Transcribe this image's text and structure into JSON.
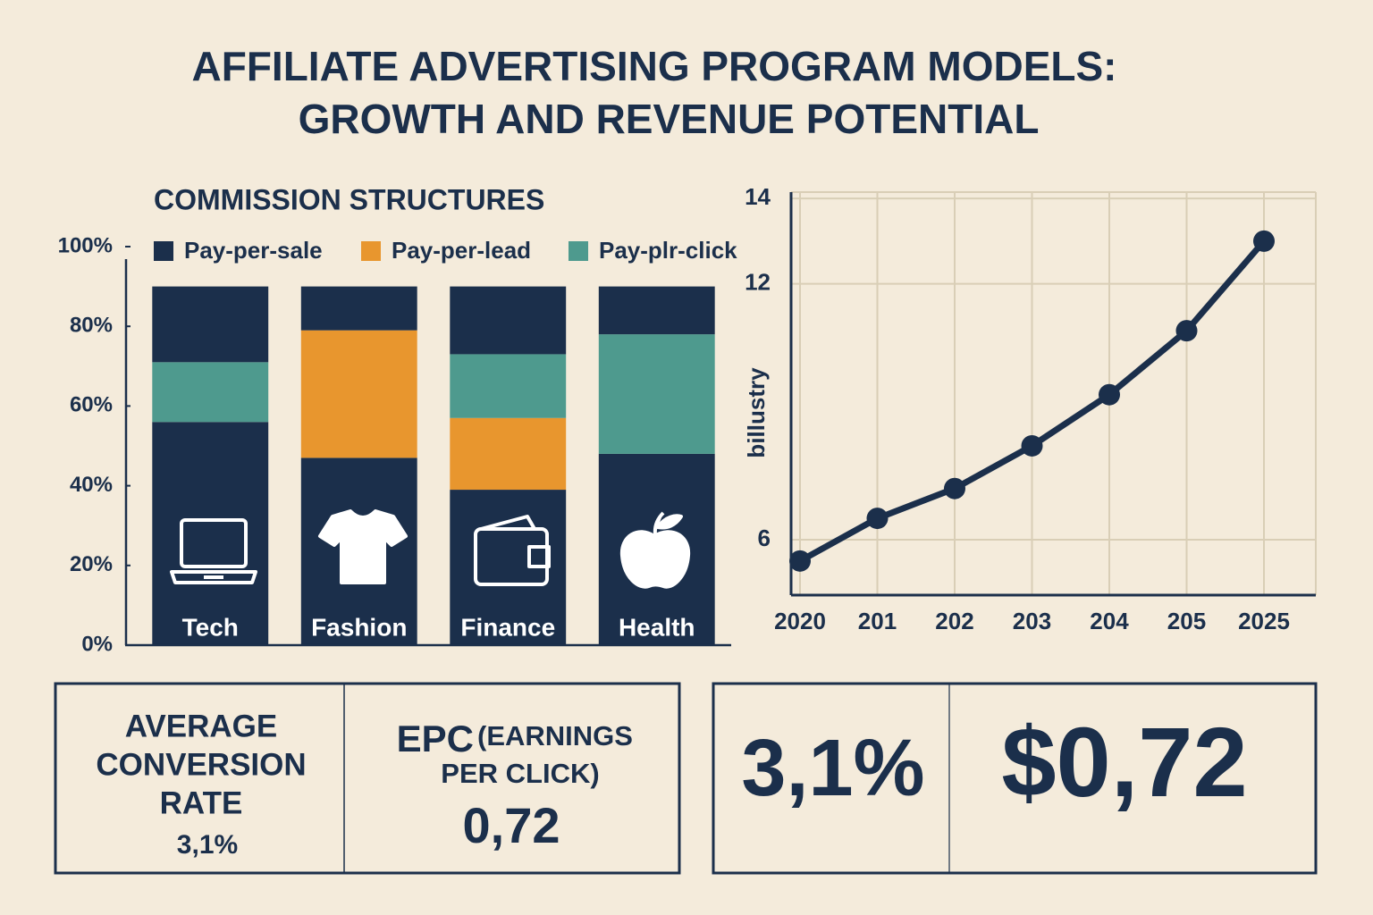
{
  "title_lines": [
    "AFFILIATE ADVERTISING PROGRAM MODELS:",
    "GROWTH AND REVENUE POTENTIAL"
  ],
  "chart_data": [
    {
      "type": "stacked_bar",
      "title": "COMMISSION STRUCTURES",
      "categories": [
        "Tech",
        "Fashion",
        "Finance",
        "Health"
      ],
      "series": [
        {
          "name": "Pay-per-sale",
          "color": "#1b2f4b",
          "values": [
            56,
            47,
            39,
            48
          ]
        },
        {
          "name": "Pay-per-lead",
          "color": "#e8962e",
          "values": [
            0,
            32,
            18,
            0
          ]
        },
        {
          "name": "Pay-plr-click",
          "color": "#4e9a8e",
          "values": [
            15,
            0,
            16,
            30
          ]
        },
        {
          "color": "#1b2f4b",
          "values": [
            19,
            11,
            17,
            12
          ]
        }
      ],
      "ylim": [
        0,
        100
      ],
      "yticks": [
        {
          "value": 0,
          "label": "0%"
        },
        {
          "value": 20,
          "label": "20%"
        },
        {
          "value": 40,
          "label": "40%"
        },
        {
          "value": 60,
          "label": "60%"
        },
        {
          "value": 80,
          "label": "80%"
        },
        {
          "value": 100,
          "label": "100%"
        }
      ]
    },
    {
      "type": "line",
      "y_label": "billustry",
      "categories": [
        "2020",
        "201",
        "202",
        "203",
        "204",
        "205",
        "2025"
      ],
      "series": [
        {
          "color": "#1b2f4b",
          "values": [
            5.5,
            6.5,
            7.2,
            8.2,
            9.4,
            10.9,
            13.0
          ]
        }
      ],
      "ylim": [
        4.7,
        14.15
      ],
      "yticks": [
        6,
        12,
        14
      ],
      "grid": true
    }
  ],
  "stats": {
    "conversion": {
      "label_lines": [
        "AVERAGE",
        "CONVERSION",
        "RATE"
      ],
      "value": "3,1%"
    },
    "epc": {
      "label_lines": [
        "EPC",
        "(EARNINGS",
        "PER CLICK)"
      ],
      "value": "0,72"
    },
    "highlights": [
      "3,1%",
      "$0,72"
    ]
  }
}
